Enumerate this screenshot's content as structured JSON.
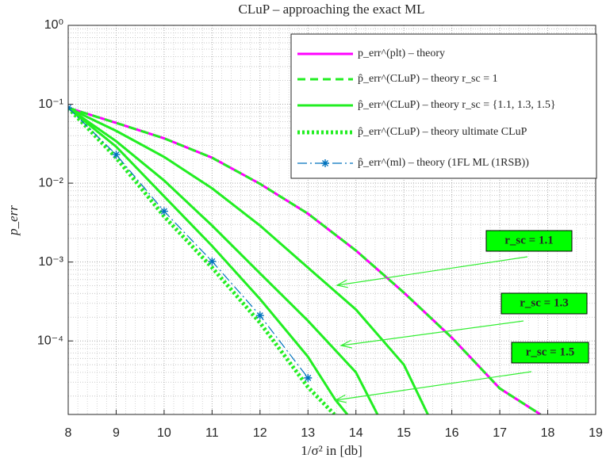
{
  "chart_data": {
    "type": "line",
    "title": "CLuP – approaching the exact ML",
    "xlabel": "1/σ² in [db]",
    "ylabel": "p_err",
    "log_y": true,
    "grid": true,
    "legend": "top-right",
    "xlim": [
      8,
      19
    ],
    "xticks": [
      8,
      9,
      10,
      11,
      12,
      13,
      14,
      15,
      16,
      17,
      18,
      19
    ],
    "ylim": [
      1.17e-05,
      1
    ],
    "yticks": [
      {
        "value": 1,
        "label": "10⁰"
      },
      {
        "value": 0.1,
        "label": "10⁻¹"
      },
      {
        "value": 0.01,
        "label": "10⁻²"
      },
      {
        "value": 0.001,
        "label": "10⁻³"
      },
      {
        "value": 0.0001,
        "label": "10⁻⁴"
      }
    ],
    "series": [
      {
        "name": "p_err^(plt) – theory",
        "color": "#ff00ff",
        "style": "solid",
        "x": [
          8,
          9,
          10,
          11,
          12,
          13,
          14,
          15,
          16,
          17,
          17.85
        ],
        "values": [
          0.09,
          0.058,
          0.037,
          0.021,
          0.0098,
          0.0041,
          0.0014,
          0.00041,
          0.00011,
          2.5e-05,
          1.17e-05
        ]
      },
      {
        "name": "p̂_err^(CLuP) – theory r_sc = 1",
        "color": "#22ee22",
        "style": "dashed",
        "x": [
          8,
          9,
          10,
          11,
          12,
          13,
          14,
          15,
          16,
          17,
          17.85
        ],
        "values": [
          0.09,
          0.058,
          0.037,
          0.021,
          0.0098,
          0.0041,
          0.0014,
          0.00041,
          0.00011,
          2.5e-05,
          1.17e-05
        ]
      },
      {
        "name": "p̂_err^(CLuP) – theory r_sc = {1.1, 1.3, 1.5}",
        "color": "#22ee22",
        "style": "solid",
        "lines": [
          {
            "x": [
              8,
              9,
              10,
              11,
              12,
              13,
              14,
              15,
              15.5
            ],
            "values": [
              0.09,
              0.046,
              0.0215,
              0.0086,
              0.0029,
              0.00085,
              0.00025,
              5e-05,
              1.17e-05
            ]
          },
          {
            "x": [
              8,
              9,
              10,
              11,
              12,
              13,
              14,
              14.45
            ],
            "values": [
              0.09,
              0.034,
              0.0108,
              0.0029,
              0.00072,
              0.00018,
              4e-05,
              1.17e-05
            ]
          },
          {
            "x": [
              8,
              9,
              10,
              11,
              12,
              13,
              13.57,
              13.82
            ],
            "values": [
              0.09,
              0.029,
              0.0068,
              0.0016,
              0.00034,
              6.3e-05,
              1.8e-05,
              1.17e-05
            ]
          }
        ]
      },
      {
        "name": "p̂_err^(CLuP) – theory ultimate CLuP",
        "color": "#22ee22",
        "style": "dotted",
        "x": [
          8,
          9,
          10,
          11,
          12,
          13,
          13.55
        ],
        "values": [
          0.09,
          0.021,
          0.0038,
          0.00085,
          0.00017,
          2.6e-05,
          1.17e-05
        ]
      },
      {
        "name": "p̂_err^(ml) – theory (1FL ML (1RSB))",
        "color": "#0072bd",
        "style": "dashdot",
        "marker": "star",
        "x": [
          8,
          9,
          10,
          11,
          12,
          13
        ],
        "values": [
          0.09,
          0.023,
          0.0044,
          0.00102,
          0.00021,
          3.4e-05
        ]
      }
    ],
    "annotations": [
      "r_sc = 1.1",
      "r_sc = 1.3",
      "r_sc = 1.5"
    ]
  }
}
